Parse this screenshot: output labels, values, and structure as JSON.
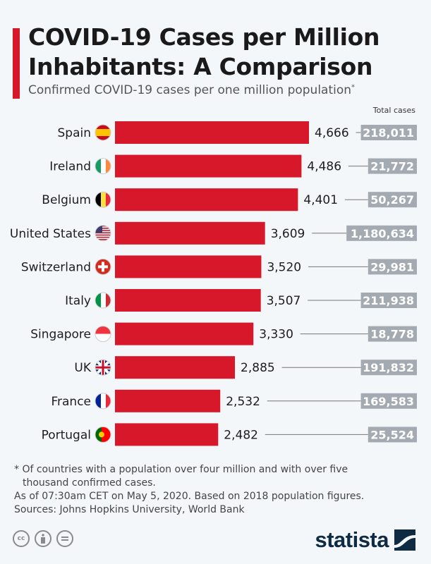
{
  "title": "COVID-19 Cases per Million Inhabitants: A Comparison",
  "subtitle": "Confirmed COVID-19 cases per one million population",
  "subtitle_mark": "*",
  "colors": {
    "bar": "#d7172a",
    "total_box": "#a3aab2",
    "background": "#f4f7fa",
    "accent": "#d7172a"
  },
  "chart_data": {
    "type": "bar",
    "orientation": "horizontal",
    "categories": [
      "Spain",
      "Ireland",
      "Belgium",
      "United States",
      "Switzerland",
      "Italy",
      "Singapore",
      "UK",
      "France",
      "Portugal"
    ],
    "values": [
      4666,
      4486,
      4401,
      3609,
      3520,
      3507,
      3330,
      2885,
      2532,
      2482
    ],
    "value_labels": [
      "4,666",
      "4,486",
      "4,401",
      "3,609",
      "3,520",
      "3,507",
      "3,330",
      "2,885",
      "2,532",
      "2,482"
    ],
    "total_cases_header": "Total cases",
    "total_cases": [
      "218,011",
      "21,772",
      "50,267",
      "1,180,634",
      "29,981",
      "211,938",
      "18,778",
      "191,832",
      "169,583",
      "25,524"
    ],
    "flag_icons": [
      "flag-spain-icon",
      "flag-ireland-icon",
      "flag-belgium-icon",
      "flag-usa-icon",
      "flag-switzerland-icon",
      "flag-italy-icon",
      "flag-singapore-icon",
      "flag-uk-icon",
      "flag-france-icon",
      "flag-portugal-icon"
    ]
  },
  "footnotes": {
    "note_line1": "* Of countries with a population over four million and with over five",
    "note_line2": "thousand confirmed cases.",
    "date": "As of 07:30am CET on May 5, 2020. Based on 2018 population figures.",
    "sources": "Sources: Johns Hopkins University, World Bank"
  },
  "license": {
    "cc": "cc",
    "by": "by",
    "nd": "nd"
  },
  "brand": "statista"
}
